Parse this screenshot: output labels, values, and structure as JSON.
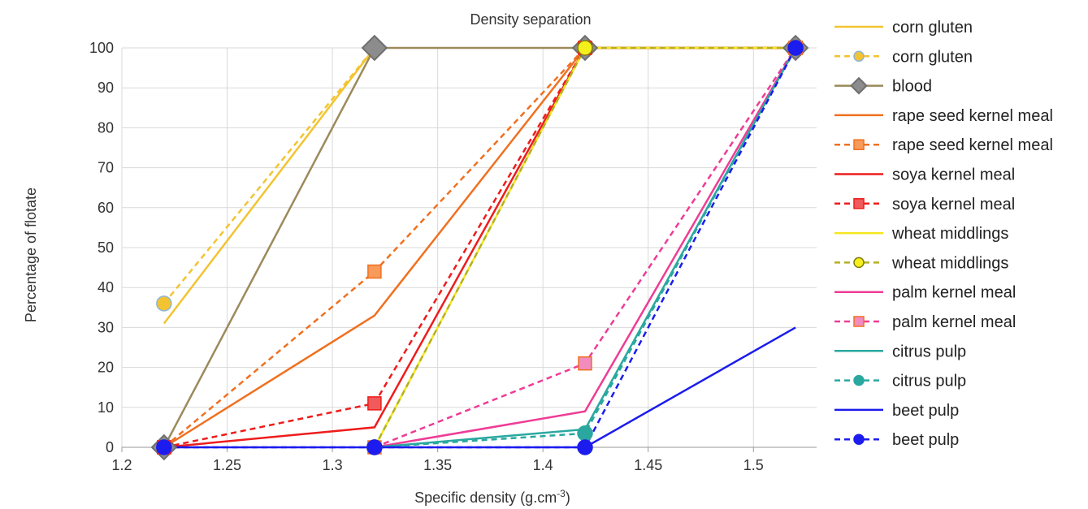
{
  "chart_data": {
    "type": "line",
    "title": "Density separation",
    "xlabel": "Specific density (g.cm",
    "xlabel_sup": "-3",
    "xlabel_end": ")",
    "ylabel": "Percentage of flotate",
    "xlim": [
      1.2,
      1.53
    ],
    "ylim": [
      0,
      100
    ],
    "x_ticks": [
      1.2,
      1.25,
      1.3,
      1.35,
      1.4,
      1.45,
      1.5
    ],
    "x_tick_labels": [
      "1.2",
      "1.25",
      "1.3",
      "1.35",
      "1.4",
      "1.45",
      "1.5"
    ],
    "y_ticks": [
      0,
      10,
      20,
      30,
      40,
      50,
      60,
      70,
      80,
      90,
      100
    ],
    "y_tick_labels": [
      "0",
      "10",
      "20",
      "30",
      "40",
      "50",
      "60",
      "70",
      "80",
      "90",
      "100"
    ],
    "grid": true,
    "legend_position": "right",
    "series": [
      {
        "name": "corn gluten",
        "color": "#f2c431",
        "dash": false,
        "marker": "none",
        "x": [
          1.22,
          1.32
        ],
        "y": [
          31,
          100
        ]
      },
      {
        "name": "corn gluten",
        "color": "#f2c431",
        "dash": true,
        "marker": "circle",
        "marker_fill": "#f2c431",
        "marker_stroke": "#8fb4d8",
        "x": [
          1.22,
          1.32
        ],
        "y": [
          36,
          100
        ]
      },
      {
        "name": "blood",
        "color": "#9c8a5a",
        "dash": false,
        "marker": "diamond",
        "marker_fill": "#8c8c8c",
        "marker_stroke": "#6e6e6e",
        "x": [
          1.22,
          1.32,
          1.42,
          1.52
        ],
        "y": [
          0,
          100,
          100,
          100
        ]
      },
      {
        "name": "rape seed kernel meal",
        "color": "#f07020",
        "dash": false,
        "marker": "none",
        "x": [
          1.22,
          1.32,
          1.42,
          1.52
        ],
        "y": [
          0,
          33,
          100,
          100
        ]
      },
      {
        "name": "rape seed kernel meal",
        "color": "#f07020",
        "dash": true,
        "marker": "square",
        "marker_fill": "#f79a5a",
        "marker_stroke": "#f07020",
        "x": [
          1.22,
          1.32,
          1.42,
          1.52
        ],
        "y": [
          0,
          44,
          100,
          100
        ]
      },
      {
        "name": "soya kernel meal",
        "color": "#ee1c1c",
        "dash": false,
        "marker": "none",
        "x": [
          1.22,
          1.32,
          1.42,
          1.52
        ],
        "y": [
          0,
          5,
          100,
          100
        ]
      },
      {
        "name": "soya kernel meal",
        "color": "#ee1c1c",
        "dash": true,
        "marker": "square",
        "marker_fill": "#f05a5a",
        "marker_stroke": "#ee1c1c",
        "x": [
          1.22,
          1.32,
          1.42,
          1.52
        ],
        "y": [
          0,
          11,
          100,
          100
        ]
      },
      {
        "name": "wheat middlings",
        "color": "#f5e61c",
        "dash": false,
        "marker": "none",
        "x": [
          1.32,
          1.42,
          1.52
        ],
        "y": [
          0,
          100,
          100
        ]
      },
      {
        "name": "wheat middlings",
        "color": "#b5b020",
        "dash": true,
        "marker": "circle",
        "marker_fill": "#f5f01c",
        "marker_stroke": "#807a10",
        "x": [
          1.32,
          1.42,
          1.52
        ],
        "y": [
          0,
          100,
          100
        ]
      },
      {
        "name": "palm kernel meal",
        "color": "#ee3c96",
        "dash": false,
        "marker": "none",
        "x": [
          1.32,
          1.42,
          1.52
        ],
        "y": [
          0,
          9,
          100
        ]
      },
      {
        "name": "palm kernel meal",
        "color": "#ee3c96",
        "dash": true,
        "marker": "square",
        "marker_fill": "#f28cbf",
        "marker_stroke": "#f07020",
        "x": [
          1.32,
          1.42,
          1.52
        ],
        "y": [
          0,
          21,
          100
        ]
      },
      {
        "name": "citrus pulp",
        "color": "#2aa8a0",
        "dash": false,
        "marker": "none",
        "x": [
          1.32,
          1.42,
          1.52
        ],
        "y": [
          0,
          4.5,
          100
        ]
      },
      {
        "name": "citrus pulp",
        "color": "#2aa8a0",
        "dash": true,
        "marker": "circle",
        "marker_fill": "#2aa8a0",
        "marker_stroke": "#2aa8a0",
        "x": [
          1.32,
          1.42,
          1.52
        ],
        "y": [
          0,
          3.5,
          100
        ]
      },
      {
        "name": "beet pulp",
        "color": "#1c1cee",
        "dash": false,
        "marker": "none",
        "x": [
          1.22,
          1.42,
          1.52
        ],
        "y": [
          0,
          0,
          30
        ]
      },
      {
        "name": "beet pulp",
        "color": "#1c1cee",
        "dash": true,
        "marker": "circle",
        "marker_fill": "#1c1cee",
        "marker_stroke": "#1c1cee",
        "x": [
          1.22,
          1.32,
          1.42,
          1.52
        ],
        "y": [
          0,
          0,
          0,
          100
        ]
      }
    ]
  }
}
